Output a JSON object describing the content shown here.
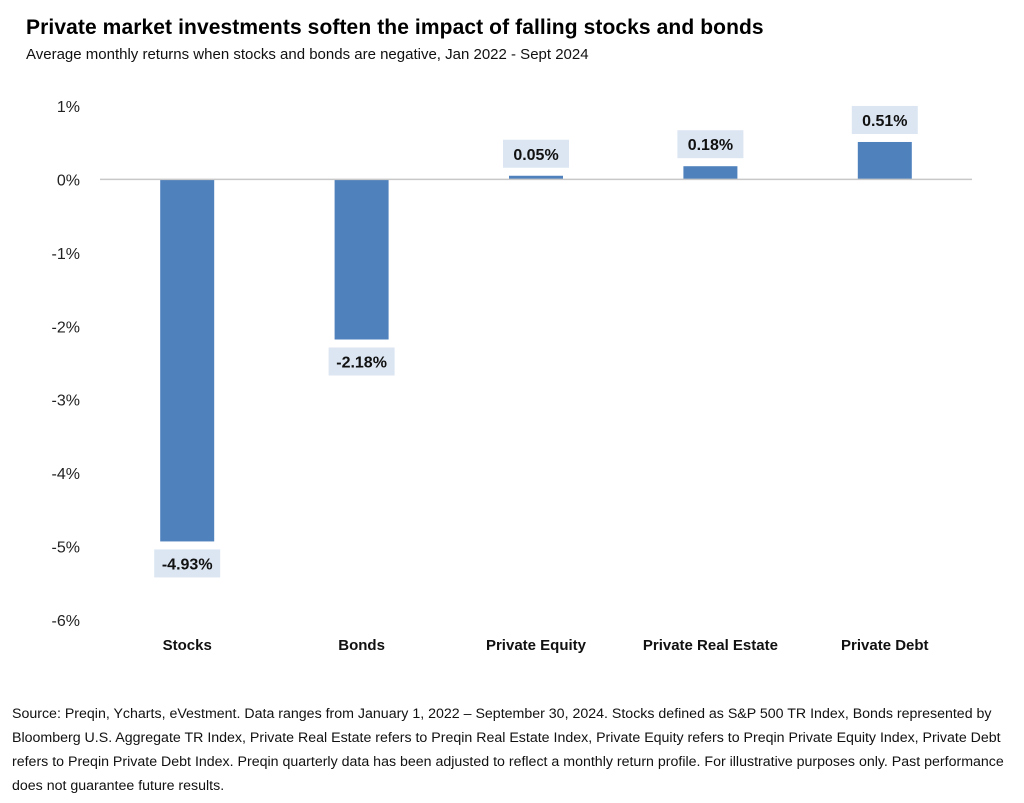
{
  "title": "Private market investments soften the impact of falling stocks and bonds",
  "subtitle": "Average monthly returns when stocks and bonds are negative, Jan 2022 - Sept 2024",
  "source": "Source: Preqin, Ycharts, eVestment. Data ranges from January 1, 2022 – September 30, 2024. Stocks defined as S&P 500 TR Index, Bonds represented by Bloomberg U.S. Aggregate TR Index, Private Real Estate refers to Preqin Real Estate Index, Private Equity refers to Preqin Private Equity Index, Private Debt refers to Preqin Private Debt Index. Preqin quarterly data has been adjusted to reflect a monthly return profile. For illustrative purposes only. Past performance does not guarantee future results.",
  "colors": {
    "bar": "#4f81bd",
    "label_bg": "#dce6f2",
    "axis": "#c8c8c8"
  },
  "chart_data": {
    "type": "bar",
    "categories": [
      "Stocks",
      "Bonds",
      "Private Equity",
      "Private Real Estate",
      "Private Debt"
    ],
    "values": [
      -4.93,
      -2.18,
      0.05,
      0.18,
      0.51
    ],
    "data_labels": [
      "-4.93%",
      "-2.18%",
      "0.05%",
      "0.18%",
      "0.51%"
    ],
    "ylim": [
      -6,
      1
    ],
    "yticks": [
      1,
      0,
      -1,
      -2,
      -3,
      -4,
      -5,
      -6
    ],
    "ytick_labels": [
      "1%",
      "0%",
      "-1%",
      "-2%",
      "-3%",
      "-4%",
      "-5%",
      "-6%"
    ],
    "grid": false,
    "legend": "none"
  }
}
